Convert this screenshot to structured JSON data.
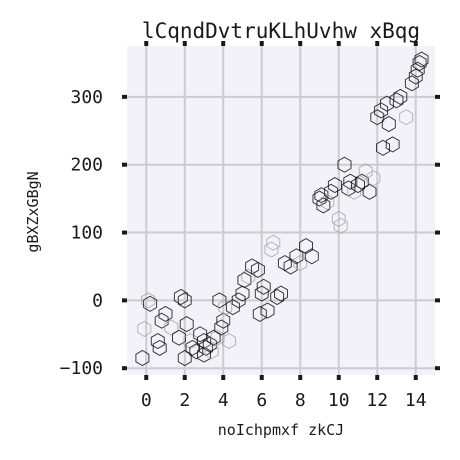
{
  "chart_data": {
    "type": "scatter",
    "title": "lCqndDvtruKLhUvhw xBqg",
    "xlabel": "noIchpmxf zkCJ",
    "ylabel": "gBXZxGBgN",
    "xlim": [
      -1,
      15
    ],
    "ylim": [
      -110,
      375
    ],
    "x_ticks": [
      0,
      2,
      4,
      6,
      8,
      10,
      12,
      14
    ],
    "y_ticks": [
      -100,
      0,
      100,
      200,
      300
    ],
    "x_tick_labels": [
      "0",
      "2",
      "4",
      "6",
      "8",
      "10",
      "12",
      "14"
    ],
    "y_tick_labels": [
      "−100",
      "0",
      "100",
      "200",
      "300"
    ],
    "grid": true,
    "marker": "hexagon-outline",
    "colors": {
      "plot_background": "#f3f1fa",
      "grid": "#cccccc",
      "marker_dark": "#1a1a1a",
      "marker_light": "#a0a0a0"
    },
    "series": [
      {
        "x": [
          -0.2,
          -0.1,
          0.1,
          0.2,
          0.6,
          0.7,
          0.8,
          1.0,
          1.3,
          1.7,
          1.8,
          2.0,
          2.0,
          2.1,
          2.3,
          2.4,
          2.6,
          2.8,
          3.0,
          3.0,
          3.1,
          3.3,
          3.4,
          3.5,
          3.7,
          3.8,
          3.9,
          4.0,
          4.1,
          4.3,
          4.5,
          4.8,
          5.0,
          5.1,
          5.3,
          5.5,
          5.8,
          5.9,
          6.0,
          6.1,
          6.3,
          6.5,
          6.6,
          6.8,
          7.0,
          7.2,
          7.5,
          7.8,
          8.0,
          8.3,
          8.6,
          9.0,
          9.1,
          9.2,
          9.4,
          9.6,
          9.8,
          10.0,
          10.1,
          10.3,
          10.5,
          10.6,
          10.8,
          11.0,
          11.2,
          11.4,
          11.6,
          11.8,
          12.0,
          12.2,
          12.3,
          12.5,
          12.6,
          12.8,
          13.0,
          13.2,
          13.5,
          13.8,
          14.0,
          14.1,
          14.2,
          14.3
        ],
        "y": [
          -85,
          -42,
          0,
          -5,
          -60,
          -70,
          -30,
          -20,
          -40,
          -55,
          5,
          0,
          -85,
          -35,
          -60,
          -70,
          -75,
          -50,
          -60,
          -80,
          -70,
          -65,
          -75,
          -55,
          -55,
          0,
          -40,
          -30,
          -10,
          -60,
          -10,
          0,
          10,
          30,
          35,
          50,
          45,
          -20,
          10,
          20,
          -15,
          75,
          85,
          5,
          10,
          55,
          50,
          65,
          55,
          80,
          65,
          150,
          155,
          140,
          145,
          160,
          170,
          120,
          110,
          200,
          165,
          175,
          160,
          170,
          175,
          190,
          160,
          180,
          270,
          280,
          225,
          290,
          260,
          230,
          295,
          300,
          270,
          320,
          330,
          340,
          350,
          355
        ],
        "shade": [
          1,
          0,
          0,
          1,
          1,
          1,
          1,
          1,
          0,
          1,
          1,
          1,
          1,
          1,
          0,
          1,
          1,
          1,
          1,
          1,
          1,
          1,
          0,
          1,
          0,
          1,
          1,
          1,
          0,
          0,
          1,
          1,
          1,
          1,
          0,
          1,
          1,
          1,
          1,
          1,
          1,
          0,
          0,
          1,
          1,
          1,
          1,
          1,
          0,
          1,
          1,
          1,
          1,
          1,
          0,
          1,
          1,
          0,
          0,
          1,
          1,
          1,
          0,
          1,
          1,
          0,
          1,
          0,
          1,
          1,
          1,
          1,
          1,
          1,
          1,
          1,
          0,
          1,
          1,
          1,
          1,
          1
        ]
      }
    ]
  }
}
